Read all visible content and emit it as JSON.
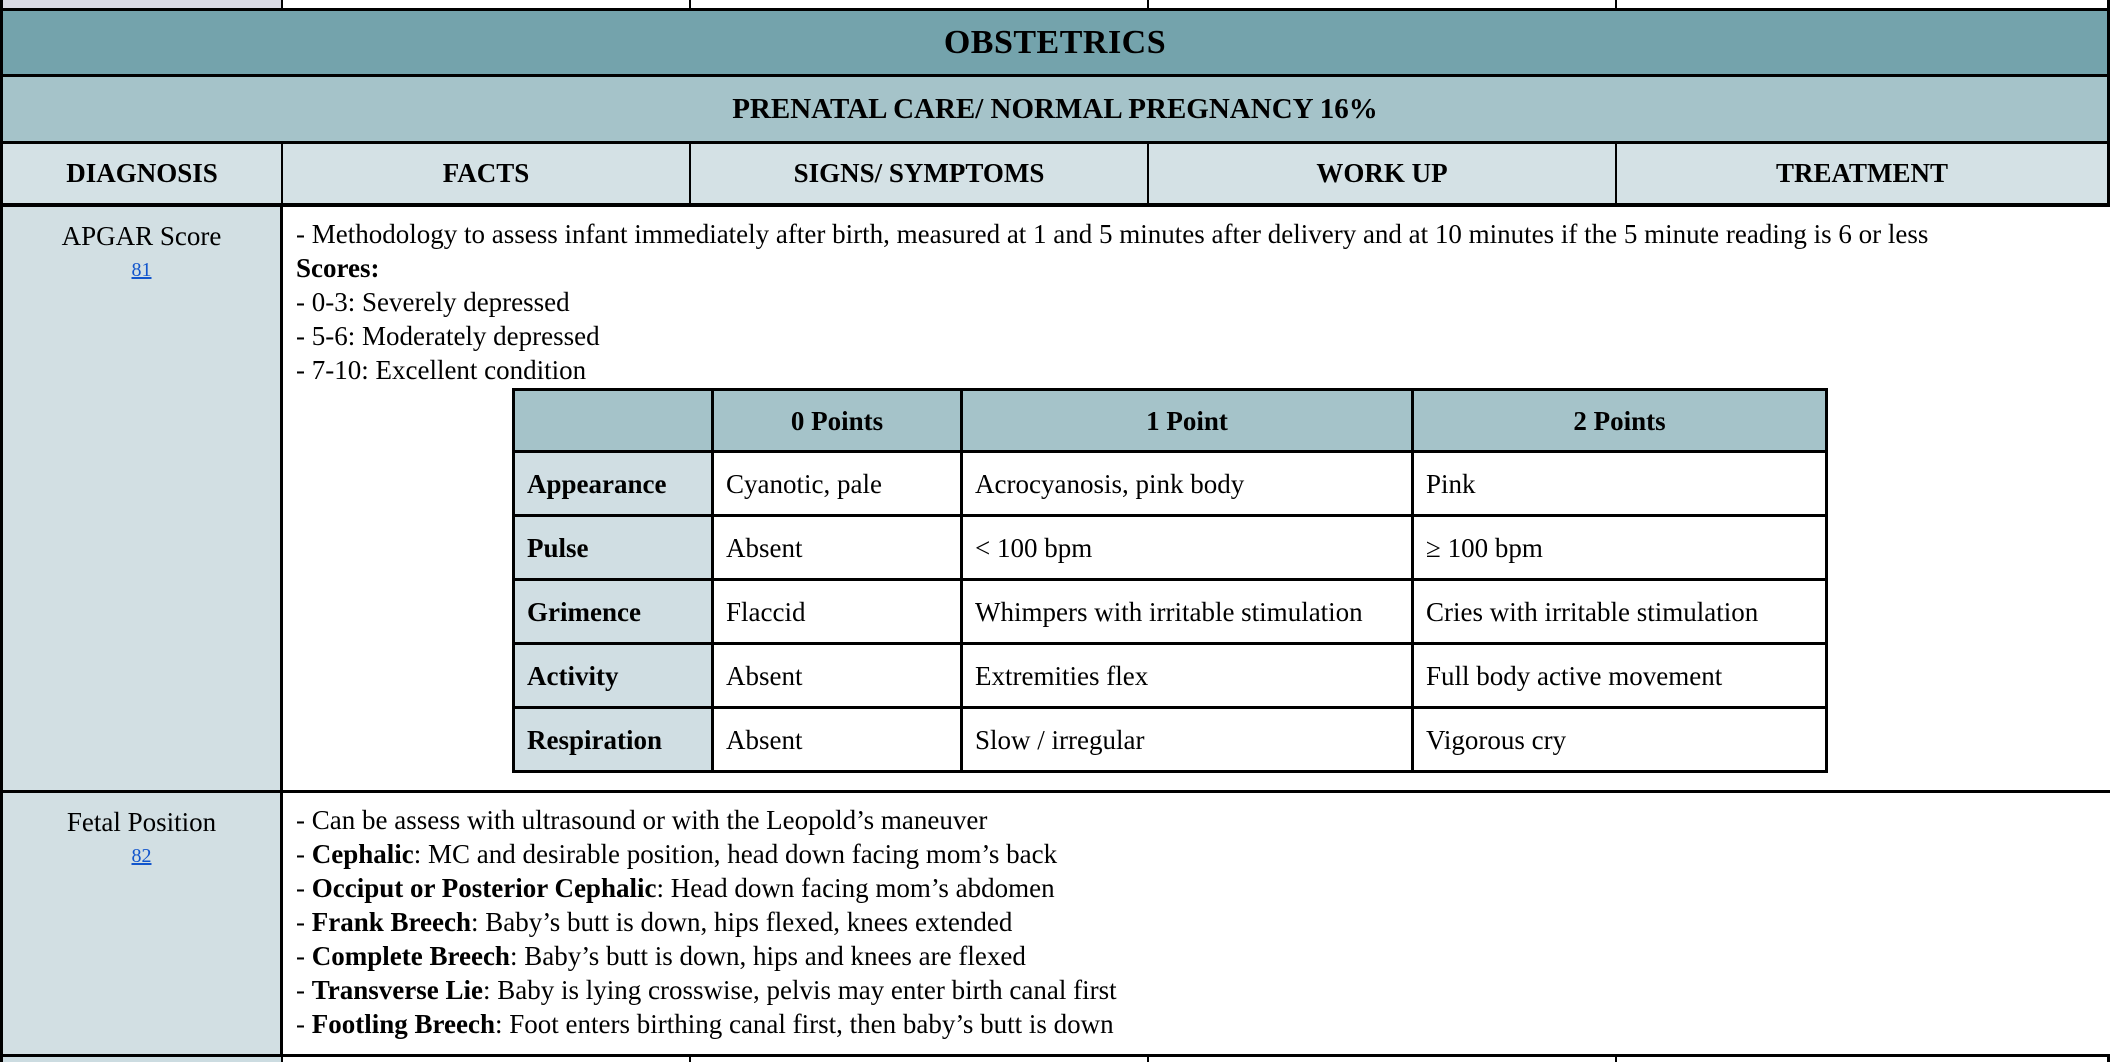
{
  "banner": {
    "title": "OBSTETRICS",
    "subtitle": "PRENATAL CARE/ NORMAL PREGNANCY 16%"
  },
  "columns": [
    "DIAGNOSIS",
    "FACTS",
    "SIGNS/ SYMPTOMS",
    "WORK UP",
    "TREATMENT"
  ],
  "apgar": {
    "diagnosis": "APGAR Score",
    "ref": "81",
    "lines": [
      {
        "pre": "- Methodology to assess infant immediately after birth, measured at 1 and 5 minutes after delivery and at 10 minutes if the 5 minute reading is 6 or less",
        "bold": "",
        "rest": ""
      },
      {
        "pre": "",
        "bold": "Scores:",
        "rest": ""
      },
      {
        "pre": "- 0-3: Severely depressed",
        "bold": "",
        "rest": ""
      },
      {
        "pre": "- 5-6: Moderately depressed",
        "bold": "",
        "rest": ""
      },
      {
        "pre": "- 7-10: Excellent condition",
        "bold": "",
        "rest": ""
      }
    ],
    "table": {
      "headers": [
        "",
        "0 Points",
        "1 Point",
        "2 Points"
      ],
      "rows": [
        {
          "label": "Appearance",
          "p0": "Cyanotic, pale",
          "p1": "Acrocyanosis, pink body",
          "p2": "Pink"
        },
        {
          "label": "Pulse",
          "p0": "Absent",
          "p1": "< 100 bpm",
          "p2": "≥ 100 bpm"
        },
        {
          "label": "Grimence",
          "p0": "Flaccid",
          "p1": "Whimpers with irritable stimulation",
          "p2": "Cries with irritable stimulation"
        },
        {
          "label": "Activity",
          "p0": "Absent",
          "p1": "Extremities flex",
          "p2": "Full body active movement"
        },
        {
          "label": "Respiration",
          "p0": "Absent",
          "p1": "Slow / irregular",
          "p2": "Vigorous cry"
        }
      ]
    }
  },
  "fetal": {
    "diagnosis": "Fetal Position",
    "ref": "82",
    "lines": [
      {
        "pre": "- Can be assess with ultrasound or with the Leopold’s maneuver",
        "bold": "",
        "rest": ""
      },
      {
        "pre": "- ",
        "bold": "Cephalic",
        "rest": ": MC and desirable position, head down facing mom’s back"
      },
      {
        "pre": "- ",
        "bold": "Occiput or Posterior Cephalic",
        "rest": ": Head down facing mom’s abdomen"
      },
      {
        "pre": "- ",
        "bold": "Frank Breech",
        "rest": ": Baby’s butt is down, hips flexed, knees extended"
      },
      {
        "pre": "- ",
        "bold": "Complete Breech",
        "rest": ": Baby’s butt is down, hips and knees are flexed"
      },
      {
        "pre": "- ",
        "bold": "Transverse Lie",
        "rest": ": Baby is lying crosswise, pelvis may enter birth canal first"
      },
      {
        "pre": "- ",
        "bold": "Footling Breech",
        "rest": ": Foot enters birthing canal first, then baby’s butt is down"
      }
    ]
  },
  "colors": {
    "title_band": "#74a3ac",
    "subtitle_band": "#a5c3c9",
    "header_cell": "#d4e1e5",
    "diagnosis_cell": "#d2dfe3",
    "inner_header": "#a5c3c9",
    "inner_label_cell": "#d0dee3",
    "link": "#1155cc",
    "border": "#000000"
  }
}
